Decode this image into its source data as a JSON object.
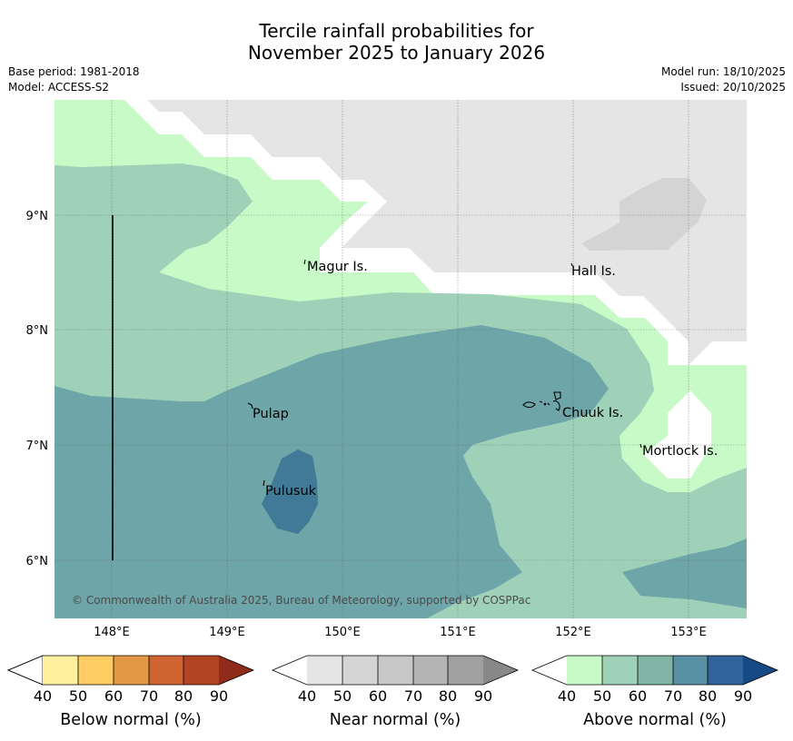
{
  "title": {
    "line1": "Tercile rainfall probabilities for",
    "line2": "November 2025 to January 2026"
  },
  "meta": {
    "base_period": "Base period: 1981-2018",
    "model": "Model: ACCESS-S2",
    "model_run": "Model run: 18/10/2025",
    "issued": "Issued: 20/10/2025"
  },
  "map": {
    "region": "Chuuk and surrounding islands, Micronesia",
    "lon_range": [
      147.5,
      153.5
    ],
    "lat_range": [
      5.5,
      10.0
    ],
    "lon_ticks": [
      "148°E",
      "149°E",
      "150°E",
      "151°E",
      "152°E",
      "153°E"
    ],
    "lat_ticks": [
      "9°N",
      "8°N",
      "7°N",
      "6°N"
    ],
    "places": {
      "magur": "Magur Is.",
      "hall": "Hall Is.",
      "pulap": "Pulap",
      "chuuk": "Chuuk Is.",
      "mortlock": "Mortlock Is.",
      "pulusuk": "Pulusuk"
    },
    "copyright": "© Commonwealth of Australia 2025, Bureau of Meteorology, supported by COSPPac",
    "colors": {
      "near_normal_dominant": "#e5e5e5",
      "near_normal_50": "#d4d4d4",
      "above_40": "#c8fac8",
      "above_50": "#9fd1b9",
      "above_60": "#6ea5a8",
      "above_70": "#417a96"
    }
  },
  "colorbars": [
    {
      "title": "Below normal (%)",
      "labels": [
        "40",
        "50",
        "60",
        "70",
        "80",
        "90"
      ],
      "colors": [
        "#fff0a0",
        "#ffcb63",
        "#e39846",
        "#cf6432",
        "#b24424",
        "#8f2b1a"
      ]
    },
    {
      "title": "Near normal (%)",
      "labels": [
        "40",
        "50",
        "60",
        "70",
        "80",
        "90"
      ],
      "colors": [
        "#e5e5e5",
        "#d4d4d4",
        "#c7c7c7",
        "#b4b4b4",
        "#a0a0a0",
        "#888888"
      ]
    },
    {
      "title": "Above normal (%)",
      "labels": [
        "40",
        "50",
        "60",
        "70",
        "80",
        "90"
      ],
      "colors": [
        "#c8fac8",
        "#9fd1b9",
        "#80b5a6",
        "#5891a3",
        "#30649a",
        "#154a85"
      ]
    }
  ]
}
